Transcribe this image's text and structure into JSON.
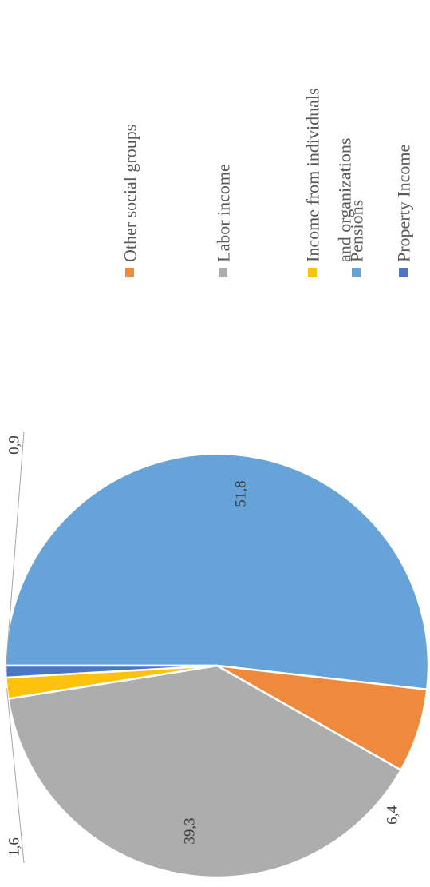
{
  "chart_data": {
    "type": "pie",
    "title": "",
    "legend_position": "right",
    "slices": [
      {
        "name": "Pensions",
        "value": 51.8,
        "label": "51,8",
        "color": "#65a3d9"
      },
      {
        "name": "Other social groups",
        "value": 6.4,
        "label": "6,4",
        "color": "#ef8a3c"
      },
      {
        "name": "Labor income",
        "value": 39.3,
        "label": "39,3",
        "color": "#adadad"
      },
      {
        "name": "Income from individuals and organizations",
        "label_lines": [
          "Income from individuals",
          "and organizations"
        ],
        "value": 1.6,
        "label": "1,6",
        "color": "#fdc20c"
      },
      {
        "name": "Property Income",
        "value": 0.9,
        "label": "0,9",
        "color": "#4a76c6"
      }
    ]
  }
}
